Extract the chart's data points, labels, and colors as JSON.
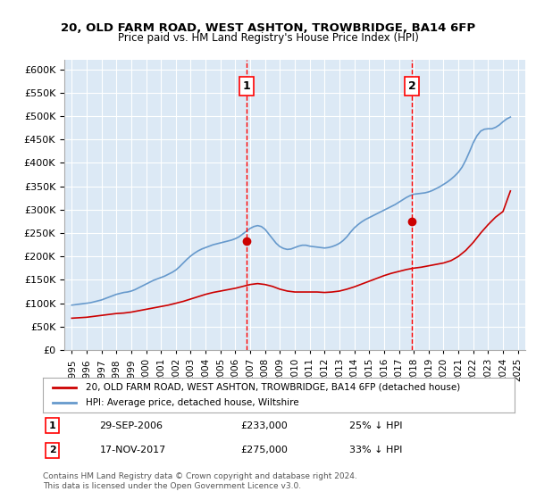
{
  "title": "20, OLD FARM ROAD, WEST ASHTON, TROWBRIDGE, BA14 6FP",
  "subtitle": "Price paid vs. HM Land Registry's House Price Index (HPI)",
  "legend_line1": "20, OLD FARM ROAD, WEST ASHTON, TROWBRIDGE, BA14 6FP (detached house)",
  "legend_line2": "HPI: Average price, detached house, Wiltshire",
  "sale1_date": "29-SEP-2006",
  "sale1_price": 233000,
  "sale1_label": "25% ↓ HPI",
  "sale2_date": "17-NOV-2017",
  "sale2_price": 275000,
  "sale2_label": "33% ↓ HPI",
  "sale1_x": 2006.75,
  "sale2_x": 2017.88,
  "ylim": [
    0,
    620000
  ],
  "xlim": [
    1994.5,
    2025.5
  ],
  "yticks": [
    0,
    50000,
    100000,
    150000,
    200000,
    250000,
    300000,
    350000,
    400000,
    450000,
    500000,
    550000,
    600000
  ],
  "background_color": "#dce9f5",
  "plot_bg_color": "#dce9f5",
  "red_line_color": "#cc0000",
  "blue_line_color": "#6699cc",
  "hpi_x": [
    1995,
    1995.25,
    1995.5,
    1995.75,
    1996,
    1996.25,
    1996.5,
    1996.75,
    1997,
    1997.25,
    1997.5,
    1997.75,
    1998,
    1998.25,
    1998.5,
    1998.75,
    1999,
    1999.25,
    1999.5,
    1999.75,
    2000,
    2000.25,
    2000.5,
    2000.75,
    2001,
    2001.25,
    2001.5,
    2001.75,
    2002,
    2002.25,
    2002.5,
    2002.75,
    2003,
    2003.25,
    2003.5,
    2003.75,
    2004,
    2004.25,
    2004.5,
    2004.75,
    2005,
    2005.25,
    2005.5,
    2005.75,
    2006,
    2006.25,
    2006.5,
    2006.75,
    2007,
    2007.25,
    2007.5,
    2007.75,
    2008,
    2008.25,
    2008.5,
    2008.75,
    2009,
    2009.25,
    2009.5,
    2009.75,
    2010,
    2010.25,
    2010.5,
    2010.75,
    2011,
    2011.25,
    2011.5,
    2011.75,
    2012,
    2012.25,
    2012.5,
    2012.75,
    2013,
    2013.25,
    2013.5,
    2013.75,
    2014,
    2014.25,
    2014.5,
    2014.75,
    2015,
    2015.25,
    2015.5,
    2015.75,
    2016,
    2016.25,
    2016.5,
    2016.75,
    2017,
    2017.25,
    2017.5,
    2017.75,
    2018,
    2018.25,
    2018.5,
    2018.75,
    2019,
    2019.25,
    2019.5,
    2019.75,
    2020,
    2020.25,
    2020.5,
    2020.75,
    2021,
    2021.25,
    2021.5,
    2021.75,
    2022,
    2022.25,
    2022.5,
    2022.75,
    2023,
    2023.25,
    2023.5,
    2023.75,
    2024,
    2024.25,
    2024.5
  ],
  "hpi_y": [
    96000,
    97000,
    98000,
    99000,
    100000,
    101000,
    103000,
    105000,
    107000,
    110000,
    113000,
    116000,
    119000,
    121000,
    123000,
    124000,
    126000,
    129000,
    133000,
    137000,
    141000,
    145000,
    149000,
    152000,
    155000,
    158000,
    162000,
    166000,
    171000,
    178000,
    186000,
    194000,
    201000,
    207000,
    212000,
    216000,
    219000,
    222000,
    225000,
    227000,
    229000,
    231000,
    233000,
    235000,
    238000,
    242000,
    248000,
    254000,
    260000,
    264000,
    266000,
    264000,
    258000,
    248000,
    238000,
    228000,
    221000,
    217000,
    215000,
    216000,
    219000,
    222000,
    224000,
    224000,
    222000,
    221000,
    220000,
    219000,
    218000,
    219000,
    221000,
    224000,
    228000,
    234000,
    242000,
    252000,
    261000,
    268000,
    274000,
    279000,
    283000,
    287000,
    291000,
    295000,
    299000,
    303000,
    307000,
    311000,
    316000,
    321000,
    326000,
    330000,
    333000,
    334000,
    335000,
    336000,
    338000,
    341000,
    345000,
    349000,
    354000,
    359000,
    365000,
    372000,
    380000,
    391000,
    406000,
    424000,
    443000,
    458000,
    468000,
    472000,
    473000,
    473000,
    476000,
    481000,
    488000,
    494000,
    498000
  ],
  "price_x": [
    1995,
    1995.5,
    1996,
    1996.5,
    1997,
    1997.5,
    1998,
    1998.5,
    1999,
    1999.5,
    2000,
    2000.5,
    2001,
    2001.5,
    2002,
    2002.5,
    2003,
    2003.5,
    2004,
    2004.5,
    2005,
    2005.5,
    2006,
    2006.5,
    2007,
    2007.5,
    2008,
    2008.5,
    2009,
    2009.5,
    2010,
    2010.5,
    2011,
    2011.5,
    2012,
    2012.5,
    2013,
    2013.5,
    2014,
    2014.5,
    2015,
    2015.5,
    2016,
    2016.5,
    2017,
    2017.5,
    2018,
    2018.5,
    2019,
    2019.5,
    2020,
    2020.5,
    2021,
    2021.5,
    2022,
    2022.5,
    2023,
    2023.5,
    2024,
    2024.5
  ],
  "price_y": [
    68000,
    69000,
    70000,
    72000,
    74000,
    76000,
    78000,
    79000,
    81000,
    84000,
    87000,
    90000,
    93000,
    96000,
    100000,
    104000,
    109000,
    114000,
    119000,
    123000,
    126000,
    129000,
    132000,
    136000,
    140000,
    142000,
    140000,
    136000,
    130000,
    126000,
    124000,
    124000,
    124000,
    124000,
    123000,
    124000,
    126000,
    130000,
    135000,
    141000,
    147000,
    153000,
    159000,
    164000,
    168000,
    172000,
    175000,
    177000,
    180000,
    183000,
    186000,
    191000,
    200000,
    213000,
    230000,
    250000,
    268000,
    284000,
    296000,
    340000
  ],
  "footnote": "Contains HM Land Registry data © Crown copyright and database right 2024.\nThis data is licensed under the Open Government Licence v3.0."
}
